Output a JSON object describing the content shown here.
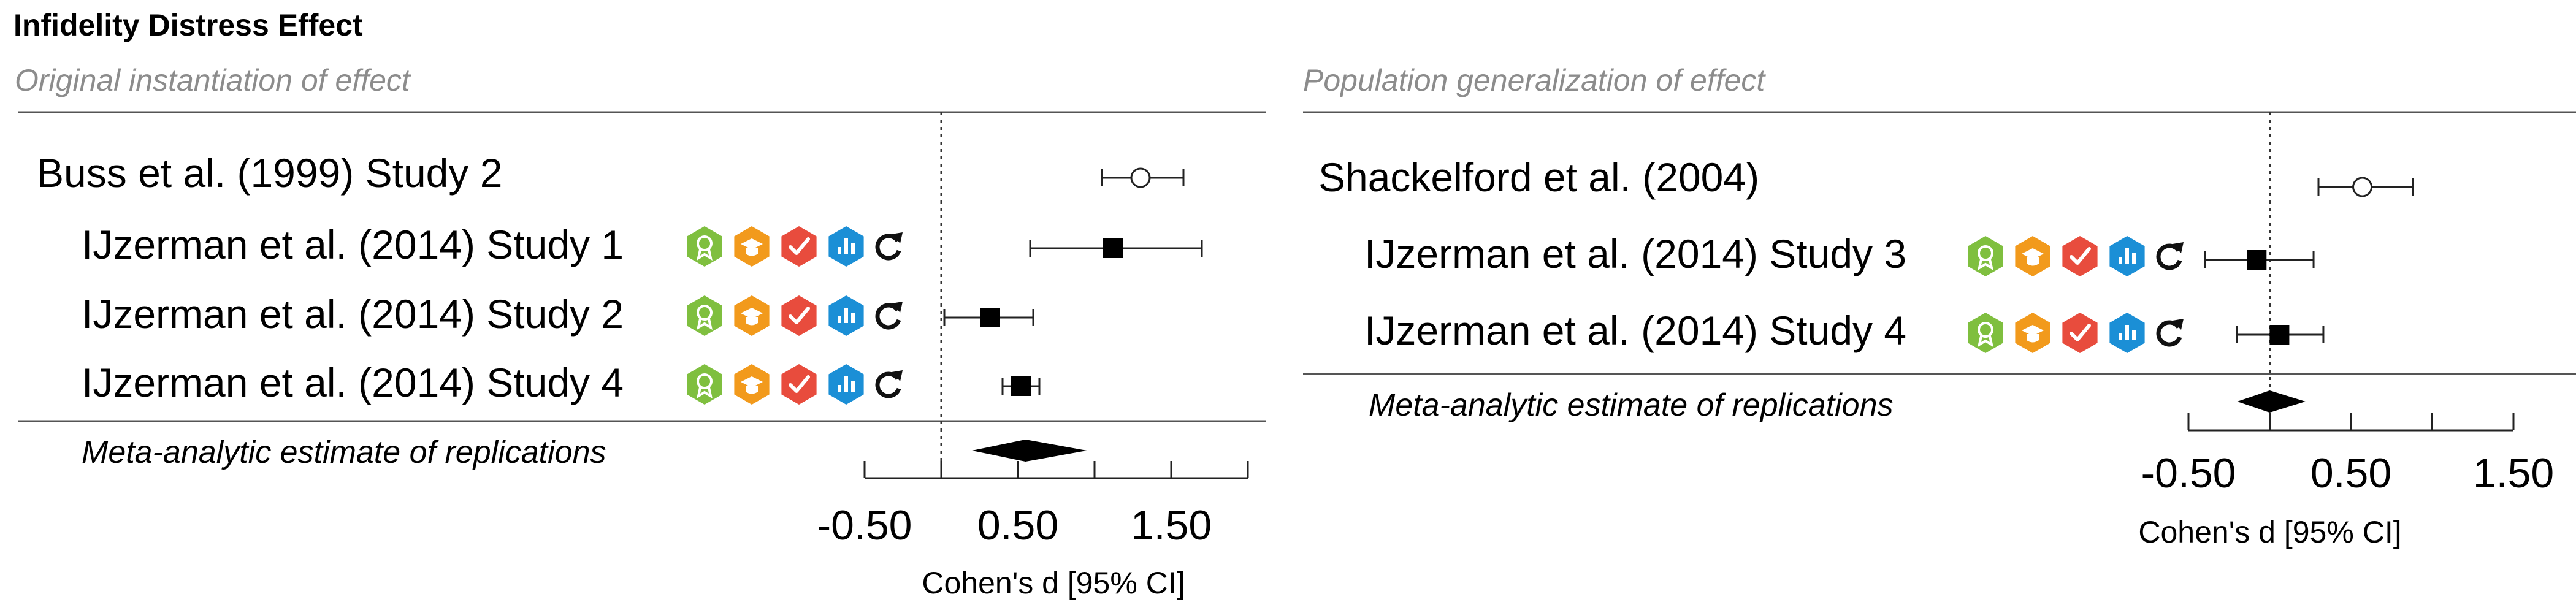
{
  "title": "Infidelity Distress Effect",
  "icon_colors": {
    "green": "#7fbf3f",
    "orange": "#f29a1c",
    "red": "#e84c3d",
    "blue": "#1b8fd6",
    "dark": "#111111"
  },
  "icons": [
    "award-badge",
    "mortarboard",
    "checkmark",
    "bar-chart",
    "reload-arrow"
  ],
  "chart_data": [
    {
      "type": "forest",
      "subtitle": "Original instantiation of effect",
      "xlabel": "Cohen's d [95% CI]",
      "xlim": [
        -0.5,
        2.0
      ],
      "xticks": [
        -0.5,
        0,
        0.5,
        1.0,
        1.5,
        2.0
      ],
      "xtick_labels": [
        "-0.50",
        "0.50",
        "1.50"
      ],
      "xtick_label_values": [
        -0.5,
        0.5,
        1.5
      ],
      "reference_line": 0,
      "original": {
        "label": "Buss et al. (1999) Study 2",
        "d": 1.3,
        "ci": [
          1.05,
          1.58
        ],
        "marker": "open-circle"
      },
      "replications": [
        {
          "label": "IJzerman et al. (2014) Study 1",
          "d": 1.12,
          "ci": [
            0.58,
            1.7
          ]
        },
        {
          "label": "IJzerman et al. (2014) Study 2",
          "d": 0.32,
          "ci": [
            0.02,
            0.6
          ]
        },
        {
          "label": "IJzerman et al. (2014) Study 4",
          "d": 0.52,
          "ci": [
            0.4,
            0.64
          ]
        }
      ],
      "meta": {
        "label": "Meta-analytic estimate of replications",
        "d": 0.55,
        "ci": [
          0.2,
          0.95
        ]
      }
    },
    {
      "type": "forest",
      "subtitle": "Population generalization of effect",
      "xlabel": "Cohen's d [95% CI]",
      "xlim": [
        -0.5,
        1.5
      ],
      "xticks": [
        -0.5,
        0,
        0.5,
        1.0,
        1.5
      ],
      "xtick_labels": [
        "-0.50",
        "0.50",
        "1.50"
      ],
      "xtick_label_values": [
        -0.5,
        0.5,
        1.5
      ],
      "reference_line": 0,
      "original": {
        "label": "Shackelford et al. (2004)",
        "d": 0.57,
        "ci": [
          0.3,
          0.88
        ],
        "marker": "open-circle"
      },
      "replications": [
        {
          "label": "IJzerman et al. (2014) Study 3",
          "d": -0.08,
          "ci": [
            -0.4,
            0.27
          ]
        },
        {
          "label": "IJzerman et al. (2014) Study 4",
          "d": 0.06,
          "ci": [
            -0.2,
            0.33
          ]
        }
      ],
      "meta": {
        "label": "Meta-analytic estimate of replications",
        "d": 0.0,
        "ci": [
          -0.2,
          0.22
        ]
      }
    }
  ]
}
